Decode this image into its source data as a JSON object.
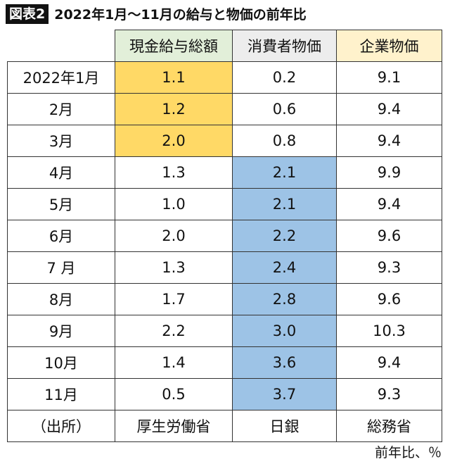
{
  "header": {
    "badge": "図表2",
    "title": "2022年1月〜11月の給与と物価の前年比"
  },
  "table": {
    "columns": [
      "",
      "現金給与総額",
      "消費者物価",
      "企業物価"
    ],
    "rows": [
      [
        "2022年1月",
        "1.1",
        "0.2",
        "9.1"
      ],
      [
        "2月",
        "1.2",
        "0.6",
        "9.4"
      ],
      [
        "3月",
        "2.0",
        "0.8",
        "9.4"
      ],
      [
        "4月",
        "1.3",
        "2.1",
        "9.9"
      ],
      [
        "5月",
        "1.0",
        "2.1",
        "9.4"
      ],
      [
        "6月",
        "2.0",
        "2.2",
        "9.6"
      ],
      [
        "7 月",
        "1.3",
        "2.4",
        "9.3"
      ],
      [
        "8月",
        "1.7",
        "2.8",
        "9.6"
      ],
      [
        "9月",
        "2.2",
        "3.0",
        "10.3"
      ],
      [
        "10月",
        "1.4",
        "3.6",
        "9.4"
      ],
      [
        "11月",
        "0.5",
        "3.7",
        "9.3"
      ],
      [
        "（出所）",
        "厚生労働省",
        "日銀",
        "総務省"
      ]
    ]
  },
  "footer": {
    "note": "前年比、％"
  }
}
